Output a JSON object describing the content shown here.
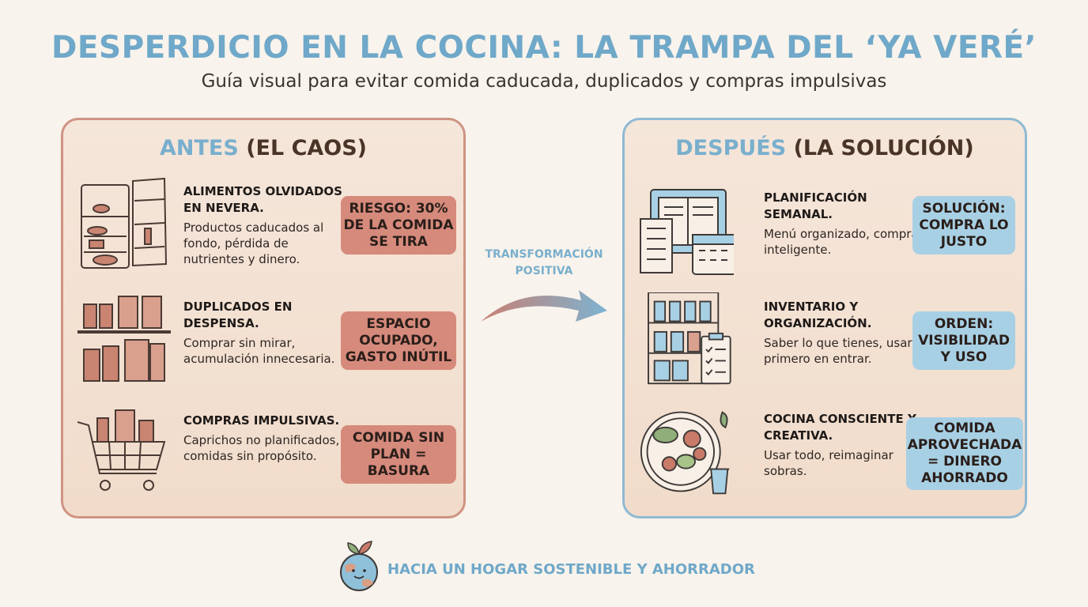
{
  "title": "DESPERDICIO EN LA COCINA: LA TRAMPA DEL ‘YA VERÉ’",
  "subtitle": "Guía visual para evitar comida caducada, duplicados y compras impulsivas",
  "before": {
    "heading_accent": "ANTES",
    "heading_rest": "(EL CAOS)",
    "items": [
      {
        "icon": "fridge-icon",
        "title": "ALIMENTOS OLVIDADOS EN NEVERA.",
        "desc": "Productos caducados al fondo, pérdida de nutrientes y dinero.",
        "badge": "RIESGO: 30% DE LA COMIDA SE TIRA"
      },
      {
        "icon": "pantry-shelf-icon",
        "title": "DUPLICADOS EN DESPENSA.",
        "desc": "Comprar sin mirar, acumulación innecesaria.",
        "badge": "ESPACIO OCUPADO, GASTO INÚTIL"
      },
      {
        "icon": "shopping-cart-icon",
        "title": "COMPRAS IMPULSIVAS.",
        "desc": "Caprichos no planificados, comidas sin propósito.",
        "badge": "COMIDA SIN PLAN = BASURA"
      }
    ]
  },
  "after": {
    "heading_accent": "DESPUÉS",
    "heading_rest": "(LA SOLUCIÓN)",
    "items": [
      {
        "icon": "calendar-plan-icon",
        "title": "PLANIFICACIÓN SEMANAL.",
        "desc": "Menú organizado, compra inteligente.",
        "badge": "SOLUCIÓN: COMPRA LO JUSTO"
      },
      {
        "icon": "organized-shelf-icon",
        "title": "INVENTARIO Y ORGANIZACIÓN.",
        "desc": "Saber lo que tienes, usar lo primero en entrar.",
        "badge": "ORDEN: VISIBILIDAD Y USO"
      },
      {
        "icon": "salad-plate-icon",
        "title": "COCINA CONSCIENTE Y CREATIVA.",
        "desc": "Usar todo, reimaginar sobras.",
        "badge": "COMIDA APROVECHADA = DINERO AHORRADO"
      }
    ]
  },
  "transition_label": "TRANSFORMACIÓN POSITIVA",
  "footer": "HACIA UN HOGAR SOSTENIBLE Y AHORRADOR",
  "colors": {
    "accent_blue": "#6fa8c9",
    "before_badge": "#d68a7b",
    "after_badge": "#a8d0e4",
    "background": "#f8f3ec"
  }
}
